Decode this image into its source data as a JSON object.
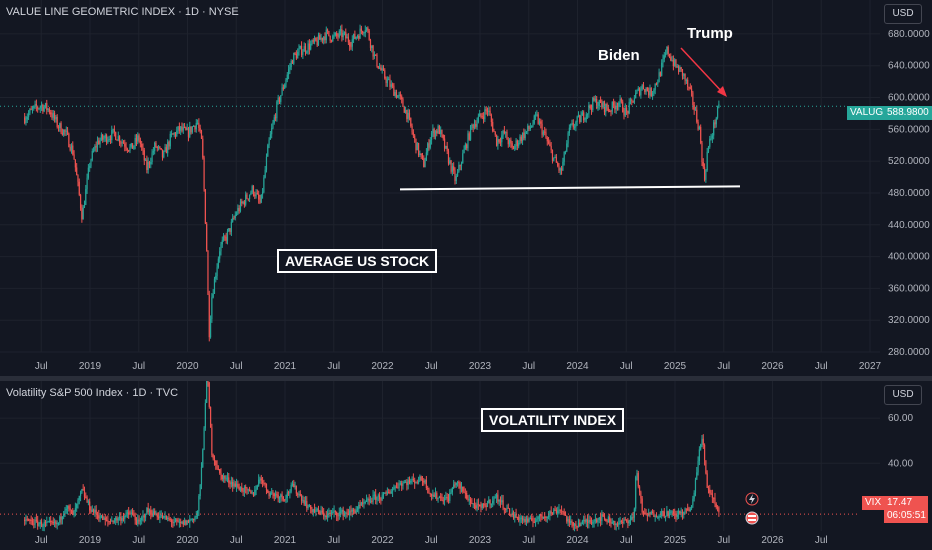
{
  "colors": {
    "background": "#131722",
    "up": "#26a69a",
    "down": "#ef5350",
    "grid": "#1e222d",
    "axis_text": "#b2b5be",
    "annotation": "#ffffff",
    "arrow": "#f23645"
  },
  "top_pane": {
    "title": "VALUE LINE GEOMETRIC INDEX · 1D · NYSE",
    "currency_button": "USD",
    "price_tag_symbol": "VALUG",
    "price_tag_value": "588.9800",
    "annotations": {
      "average_label": "AVERAGE US STOCK",
      "biden_label": "Biden",
      "trump_label": "Trump"
    }
  },
  "bottom_pane": {
    "title": "Volatility S&P 500 Index · 1D · TVC",
    "currency_button": "USD",
    "price_tag_symbol": "VIX",
    "price_tag_value": "17.47",
    "countdown": "06:05:51",
    "annotations": {
      "volatility_label": "VOLATILITY INDEX"
    }
  },
  "chart_data": [
    {
      "type": "line",
      "series": [
        {
          "values": [
            [
              2018.33,
              575
            ],
            [
              2018.42,
              585
            ],
            [
              2018.5,
              590
            ],
            [
              2018.58,
              585
            ],
            [
              2018.67,
              565
            ],
            [
              2018.75,
              555
            ],
            [
              2018.83,
              530
            ],
            [
              2018.92,
              450
            ],
            [
              2019.0,
              520
            ],
            [
              2019.08,
              545
            ],
            [
              2019.17,
              550
            ],
            [
              2019.25,
              555
            ],
            [
              2019.33,
              545
            ],
            [
              2019.42,
              535
            ],
            [
              2019.5,
              550
            ],
            [
              2019.58,
              510
            ],
            [
              2019.67,
              540
            ],
            [
              2019.75,
              525
            ],
            [
              2019.83,
              550
            ],
            [
              2019.92,
              560
            ],
            [
              2020.0,
              555
            ],
            [
              2020.1,
              570
            ],
            [
              2020.15,
              540
            ],
            [
              2020.2,
              400
            ],
            [
              2020.22,
              300
            ],
            [
              2020.25,
              350
            ],
            [
              2020.33,
              410
            ],
            [
              2020.42,
              430
            ],
            [
              2020.5,
              455
            ],
            [
              2020.58,
              470
            ],
            [
              2020.67,
              485
            ],
            [
              2020.75,
              465
            ],
            [
              2020.83,
              540
            ],
            [
              2020.92,
              590
            ],
            [
              2021.0,
              620
            ],
            [
              2021.08,
              650
            ],
            [
              2021.17,
              660
            ],
            [
              2021.25,
              665
            ],
            [
              2021.33,
              670
            ],
            [
              2021.42,
              680
            ],
            [
              2021.5,
              675
            ],
            [
              2021.58,
              680
            ],
            [
              2021.67,
              670
            ],
            [
              2021.75,
              680
            ],
            [
              2021.83,
              690
            ],
            [
              2021.92,
              650
            ],
            [
              2022.0,
              630
            ],
            [
              2022.08,
              615
            ],
            [
              2022.17,
              600
            ],
            [
              2022.25,
              580
            ],
            [
              2022.33,
              545
            ],
            [
              2022.42,
              515
            ],
            [
              2022.5,
              555
            ],
            [
              2022.58,
              560
            ],
            [
              2022.67,
              525
            ],
            [
              2022.75,
              495
            ],
            [
              2022.83,
              530
            ],
            [
              2022.92,
              565
            ],
            [
              2023.0,
              575
            ],
            [
              2023.08,
              585
            ],
            [
              2023.17,
              545
            ],
            [
              2023.25,
              555
            ],
            [
              2023.33,
              535
            ],
            [
              2023.42,
              550
            ],
            [
              2023.5,
              560
            ],
            [
              2023.58,
              575
            ],
            [
              2023.67,
              550
            ],
            [
              2023.75,
              525
            ],
            [
              2023.83,
              505
            ],
            [
              2023.92,
              560
            ],
            [
              2024.0,
              570
            ],
            [
              2024.08,
              580
            ],
            [
              2024.17,
              595
            ],
            [
              2024.25,
              590
            ],
            [
              2024.33,
              585
            ],
            [
              2024.42,
              595
            ],
            [
              2024.5,
              580
            ],
            [
              2024.58,
              600
            ],
            [
              2024.67,
              615
            ],
            [
              2024.75,
              605
            ],
            [
              2024.83,
              625
            ],
            [
              2024.92,
              660
            ],
            [
              2025.0,
              640
            ],
            [
              2025.08,
              630
            ],
            [
              2025.17,
              600
            ],
            [
              2025.25,
              560
            ],
            [
              2025.3,
              495
            ],
            [
              2025.33,
              530
            ],
            [
              2025.42,
              575
            ],
            [
              2025.46,
              589
            ]
          ]
        }
      ],
      "x_ticks": [
        "Jul",
        "2019",
        "Jul",
        "2020",
        "Jul",
        "2021",
        "Jul",
        "2022",
        "Jul",
        "2023",
        "Jul",
        "2024",
        "Jul",
        "2025",
        "Jul",
        "2026",
        "Jul",
        "2027"
      ],
      "y_ticks": [
        "680.0000",
        "640.0000",
        "600.0000",
        "560.0000",
        "520.0000",
        "480.0000",
        "440.0000",
        "400.0000",
        "360.0000",
        "320.0000",
        "280.0000"
      ],
      "ylim": [
        280,
        700
      ],
      "support_line": 487
    },
    {
      "type": "line",
      "series": [
        {
          "values": [
            [
              2018.33,
              15
            ],
            [
              2018.5,
              13
            ],
            [
              2018.67,
              13
            ],
            [
              2018.75,
              21
            ],
            [
              2018.83,
              17
            ],
            [
              2018.92,
              28
            ],
            [
              2019.0,
              20
            ],
            [
              2019.17,
              14
            ],
            [
              2019.33,
              16
            ],
            [
              2019.42,
              18
            ],
            [
              2019.5,
              13
            ],
            [
              2019.58,
              19
            ],
            [
              2019.75,
              16
            ],
            [
              2019.92,
              13
            ],
            [
              2020.0,
              14
            ],
            [
              2020.1,
              17
            ],
            [
              2020.15,
              40
            ],
            [
              2020.2,
              82
            ],
            [
              2020.25,
              45
            ],
            [
              2020.33,
              35
            ],
            [
              2020.5,
              30
            ],
            [
              2020.67,
              26
            ],
            [
              2020.75,
              34
            ],
            [
              2020.83,
              27
            ],
            [
              2021.0,
              25
            ],
            [
              2021.08,
              30
            ],
            [
              2021.25,
              20
            ],
            [
              2021.42,
              17
            ],
            [
              2021.5,
              18
            ],
            [
              2021.67,
              18
            ],
            [
              2021.92,
              25
            ],
            [
              2022.0,
              25
            ],
            [
              2022.17,
              31
            ],
            [
              2022.42,
              33
            ],
            [
              2022.5,
              26
            ],
            [
              2022.67,
              24
            ],
            [
              2022.75,
              32
            ],
            [
              2022.92,
              22
            ],
            [
              2023.0,
              20
            ],
            [
              2023.17,
              25
            ],
            [
              2023.33,
              17
            ],
            [
              2023.5,
              14
            ],
            [
              2023.67,
              17
            ],
            [
              2023.83,
              20
            ],
            [
              2023.92,
              13
            ],
            [
              2024.0,
              13
            ],
            [
              2024.25,
              16
            ],
            [
              2024.42,
              13
            ],
            [
              2024.58,
              16
            ],
            [
              2024.6,
              38
            ],
            [
              2024.67,
              17
            ],
            [
              2024.92,
              18
            ],
            [
              2025.0,
              17
            ],
            [
              2025.17,
              20
            ],
            [
              2025.25,
              45
            ],
            [
              2025.28,
              52
            ],
            [
              2025.33,
              30
            ],
            [
              2025.42,
              22
            ],
            [
              2025.46,
              17.47
            ]
          ]
        }
      ],
      "x_ticks": [
        "Jul",
        "2019",
        "Jul",
        "2020",
        "Jul",
        "2021",
        "Jul",
        "2022",
        "Jul",
        "2023",
        "Jul",
        "2024",
        "Jul",
        "2025",
        "Jul",
        "2026",
        "Jul"
      ],
      "y_ticks": [
        "60.00",
        "40.00"
      ],
      "ylim": [
        10,
        80
      ]
    }
  ]
}
